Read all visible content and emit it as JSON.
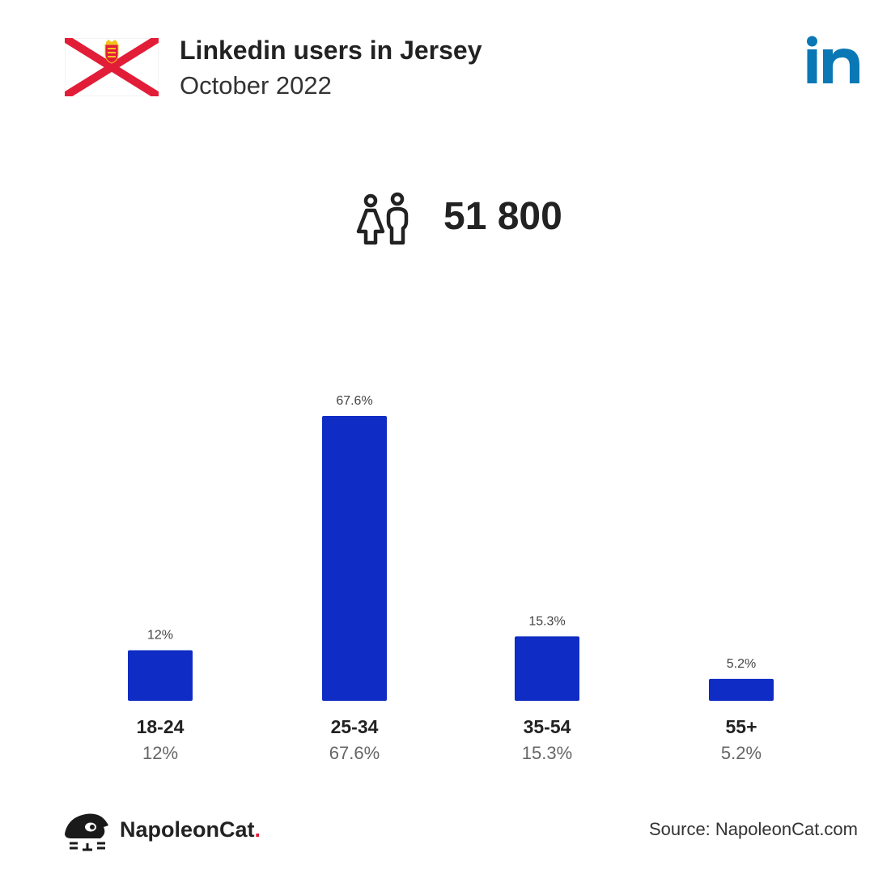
{
  "header": {
    "title": "Linkedin users in Jersey",
    "subtitle": "October 2022",
    "logo_icon": "linkedin-logo-icon",
    "flag_icon": "jersey-flag-icon"
  },
  "summary": {
    "total_users": "51 800",
    "icon": "people-icon"
  },
  "colors": {
    "bar": "#0f2cc4",
    "linkedin": "#0a78b5",
    "flag_red": "#e21d38",
    "brand_dot": "#e31837"
  },
  "chart_data": {
    "type": "bar",
    "categories": [
      "18-24",
      "25-34",
      "35-54",
      "55+"
    ],
    "values": [
      12,
      67.6,
      15.3,
      5.2
    ],
    "value_labels": [
      "12%",
      "67.6%",
      "15.3%",
      "5.2%"
    ],
    "unit": "%",
    "title": "",
    "xlabel": "",
    "ylabel": "",
    "ylim": [
      0,
      67.6
    ],
    "grid": false,
    "legend": "none"
  },
  "footer": {
    "brand_name": "NapoleonCat",
    "brand_dot": ".",
    "source": "Source: NapoleonCat.com",
    "logo_icon": "napoleoncat-logo-icon"
  }
}
